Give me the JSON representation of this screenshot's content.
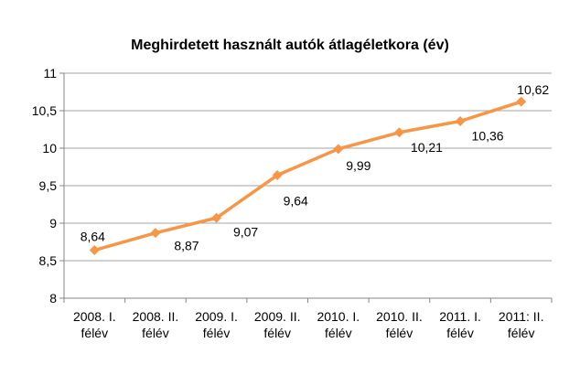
{
  "chart_data": {
    "type": "line",
    "title": "Meghirdetett  használt autók átlagéletkora (év)",
    "categories": [
      [
        "2008. I.",
        "félév"
      ],
      [
        "2008. II.",
        "félév"
      ],
      [
        "2009. I.",
        "félév"
      ],
      [
        "2009. II.",
        "félév"
      ],
      [
        "2010. I.",
        "félév"
      ],
      [
        "2010. II.",
        "félév"
      ],
      [
        "2011. I.",
        "félév"
      ],
      [
        "2011: II.",
        "félév"
      ]
    ],
    "values": [
      8.64,
      8.87,
      9.07,
      9.64,
      9.99,
      10.21,
      10.36,
      10.62
    ],
    "value_labels": [
      "8,64",
      "8,87",
      "9,07",
      "9,64",
      "9,99",
      "10,21",
      "10,36",
      "10,62"
    ],
    "y_ticks": [
      8,
      8.5,
      9,
      9.5,
      10,
      10.5,
      11
    ],
    "y_tick_labels": [
      "8",
      "8,5",
      "9",
      "9,5",
      "10",
      "10,5",
      "11"
    ],
    "ylim": [
      8,
      11
    ],
    "grid": true,
    "legend": "none",
    "colors": {
      "line": "#F79646",
      "grid": "#A6A6A6",
      "axis": "#868686"
    }
  }
}
